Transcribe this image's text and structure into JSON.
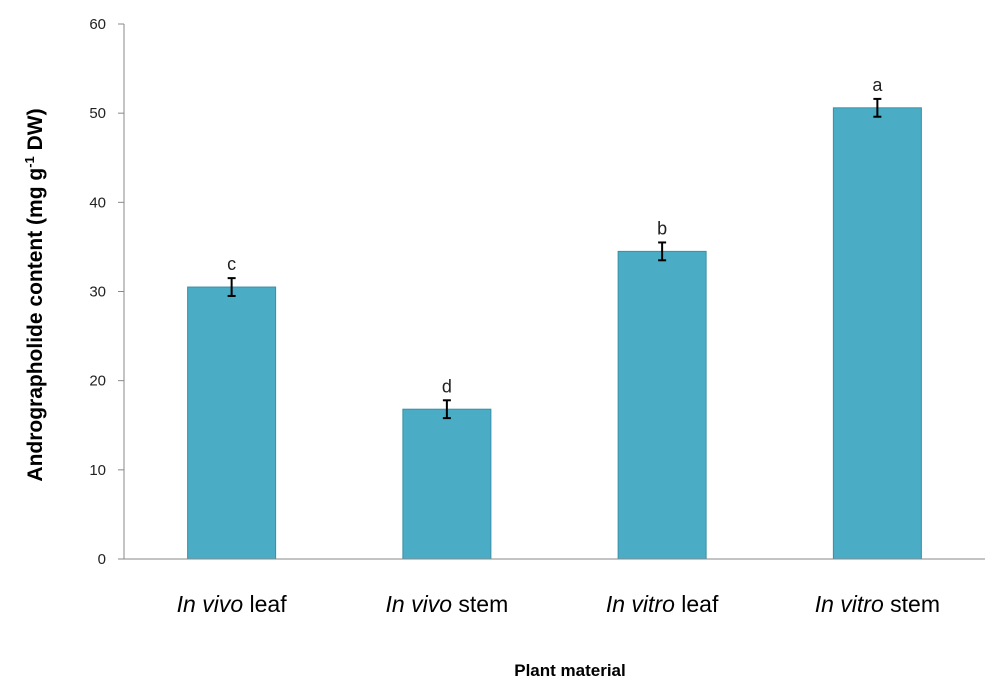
{
  "chart_data": {
    "type": "bar",
    "categories": [
      {
        "prefix": "In vivo",
        "suffix": " leaf"
      },
      {
        "prefix": "In vivo",
        "suffix": " stem"
      },
      {
        "prefix": "In vitro",
        "suffix": " leaf"
      },
      {
        "prefix": "In vitro",
        "suffix": " stem"
      }
    ],
    "values": [
      30.5,
      16.8,
      34.5,
      50.6
    ],
    "errors": [
      1.0,
      1.0,
      1.0,
      1.0
    ],
    "significance": [
      "c",
      "d",
      "b",
      "a"
    ],
    "ylim": [
      0,
      60
    ],
    "yticks": [
      0,
      10,
      20,
      30,
      40,
      50,
      60
    ],
    "xlabel": "Plant material",
    "ylabel": {
      "main": "Andrographolide content (mg g",
      "sup": "-1",
      "tail": " DW)"
    },
    "bar_color": "#4BACC6",
    "bar_edge_color": "#3a8fa8",
    "grid": false
  }
}
